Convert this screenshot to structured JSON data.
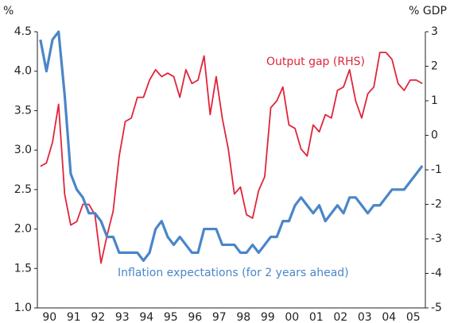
{
  "chart_data": {
    "type": "line",
    "y_label": "%",
    "y2_label": "% GDP",
    "x": [
      1990.125,
      1990.375,
      1990.625,
      1990.875,
      1991.125,
      1991.375,
      1991.625,
      1991.875,
      1992.125,
      1992.375,
      1992.625,
      1992.875,
      1993.125,
      1993.375,
      1993.625,
      1993.875,
      1994.125,
      1994.375,
      1994.625,
      1994.875,
      1995.125,
      1995.375,
      1995.625,
      1995.875,
      1996.125,
      1996.375,
      1996.625,
      1996.875,
      1997.125,
      1997.375,
      1997.625,
      1997.875,
      1998.125,
      1998.375,
      1998.625,
      1998.875,
      1999.125,
      1999.375,
      1999.625,
      1999.875,
      2000.125,
      2000.375,
      2000.625,
      2000.875,
      2001.125,
      2001.375,
      2001.625,
      2001.875,
      2002.125,
      2002.375,
      2002.625,
      2002.875,
      2003.125,
      2003.375,
      2003.625,
      2003.875,
      2004.125,
      2004.375,
      2004.625,
      2004.875,
      2005.125,
      2005.375,
      2005.625,
      2005.875
    ],
    "xlim": [
      1990,
      2006
    ],
    "xticks": [
      {
        "value": 1990.5,
        "label": "90"
      },
      {
        "value": 1991.5,
        "label": "91"
      },
      {
        "value": 1992.5,
        "label": "92"
      },
      {
        "value": 1993.5,
        "label": "93"
      },
      {
        "value": 1994.5,
        "label": "94"
      },
      {
        "value": 1995.5,
        "label": "95"
      },
      {
        "value": 1996.5,
        "label": "96"
      },
      {
        "value": 1997.5,
        "label": "97"
      },
      {
        "value": 1998.5,
        "label": "98"
      },
      {
        "value": 1999.5,
        "label": "99"
      },
      {
        "value": 2000.5,
        "label": "00"
      },
      {
        "value": 2001.5,
        "label": "01"
      },
      {
        "value": 2002.5,
        "label": "02"
      },
      {
        "value": 2003.5,
        "label": "03"
      },
      {
        "value": 2004.5,
        "label": "04"
      },
      {
        "value": 2005.5,
        "label": "05"
      }
    ],
    "ylim": [
      1,
      4.5
    ],
    "yticks": [
      {
        "value": 1,
        "label": "1.0"
      },
      1.5,
      {
        "value": 2,
        "label": "2.0"
      },
      2.5,
      {
        "value": 3,
        "label": "3.0"
      },
      3.5,
      {
        "value": 4,
        "label": "4.0"
      },
      4.5
    ],
    "y2lim": [
      -5,
      3
    ],
    "y2ticks": [
      -5,
      -4,
      -3,
      -2,
      -1,
      0,
      1,
      2,
      3
    ],
    "series": [
      {
        "name": "Output gap (RHS)",
        "color": "#e0253a",
        "axis": "y2",
        "values": [
          -0.9,
          -0.8,
          -0.2,
          0.9,
          -1.7,
          -2.6,
          -2.5,
          -2.0,
          -2.0,
          -2.3,
          -3.7,
          -2.9,
          -2.2,
          -0.6,
          0.4,
          0.5,
          1.1,
          1.1,
          1.6,
          1.9,
          1.7,
          1.8,
          1.7,
          1.1,
          1.9,
          1.5,
          1.6,
          2.3,
          0.6,
          1.7,
          0.5,
          -0.4,
          -1.7,
          -1.5,
          -2.3,
          -2.4,
          -1.6,
          -1.2,
          0.8,
          1.0,
          1.4,
          0.3,
          0.2,
          -0.4,
          -0.6,
          0.3,
          0.1,
          0.6,
          0.5,
          1.3,
          1.4,
          1.9,
          1.0,
          0.5,
          1.2,
          1.4,
          2.4,
          2.4,
          2.2,
          1.5,
          1.3,
          1.6,
          1.6,
          1.5
        ]
      },
      {
        "name": "Inflation expectations (for 2 years ahead)",
        "color": "#4a86c8",
        "axis": "y",
        "values": [
          4.4,
          4.0,
          4.4,
          4.5,
          3.7,
          2.7,
          2.5,
          2.4,
          2.2,
          2.2,
          2.1,
          1.9,
          1.9,
          1.7,
          1.7,
          1.7,
          1.7,
          1.6,
          1.7,
          2.0,
          2.1,
          1.9,
          1.8,
          1.9,
          1.8,
          1.7,
          1.7,
          2.0,
          2.0,
          2.0,
          1.8,
          1.8,
          1.8,
          1.7,
          1.7,
          1.8,
          1.7,
          1.8,
          1.9,
          1.9,
          2.1,
          2.1,
          2.3,
          2.4,
          2.3,
          2.2,
          2.3,
          2.1,
          2.2,
          2.3,
          2.2,
          2.4,
          2.4,
          2.3,
          2.2,
          2.3,
          2.3,
          2.4,
          2.5,
          2.5,
          2.5,
          2.6,
          2.7,
          2.8
        ]
      }
    ]
  }
}
